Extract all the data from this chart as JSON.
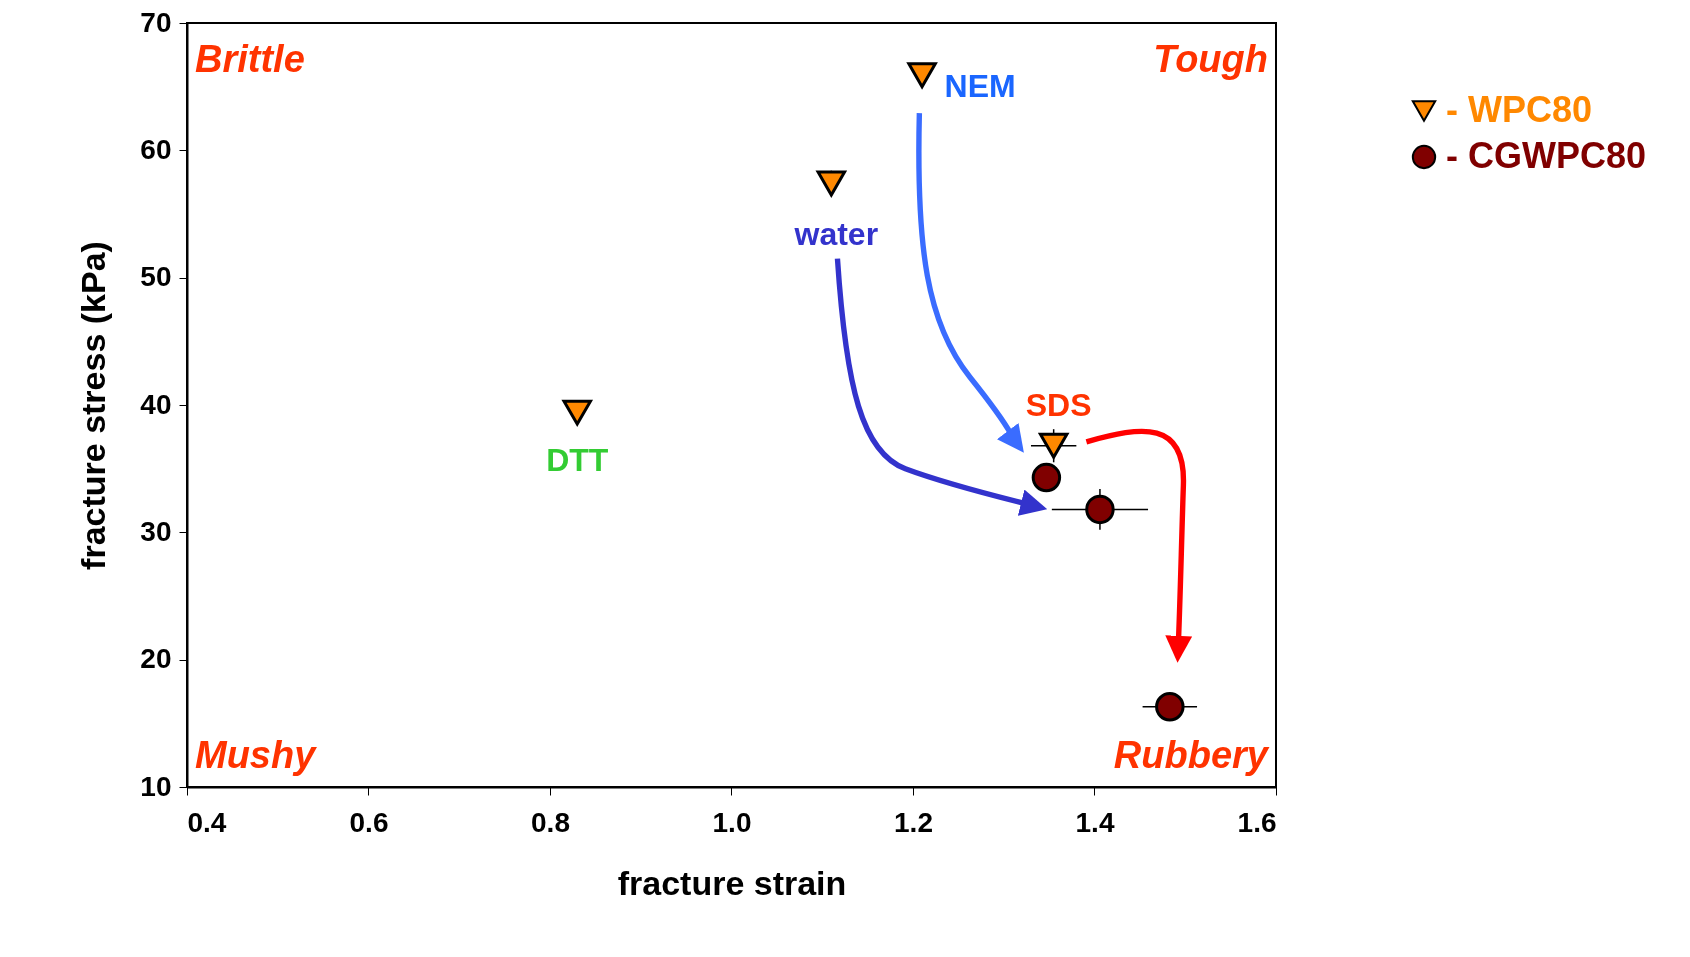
{
  "chart_data": {
    "type": "scatter",
    "xlabel": "fracture strain",
    "ylabel": "fracture stress (kPa)",
    "xlim": [
      0.4,
      1.6
    ],
    "xticks": [
      {
        "value": 0.4,
        "label": "0.4"
      },
      {
        "value": 0.6,
        "label": "0.6"
      },
      {
        "value": 0.8,
        "label": "0.8"
      },
      {
        "value": 1.0,
        "label": "1.0"
      },
      {
        "value": 1.2,
        "label": "1.2"
      },
      {
        "value": 1.4,
        "label": "1.4"
      },
      {
        "value": 1.6,
        "label": "1.6"
      }
    ],
    "ylim": [
      10,
      70
    ],
    "yticks": [
      10,
      20,
      30,
      40,
      50,
      60,
      70
    ],
    "grid": false,
    "legend": "top right",
    "series": [
      {
        "name": "- WPC80",
        "color": "#ff8800",
        "marker": "triangle",
        "x": [
          0.83,
          1.11,
          1.21,
          1.355
        ],
        "values": [
          39.4,
          57.4,
          65.9,
          36.8
        ],
        "errors": [
          null,
          1,
          null,
          1.3
        ],
        "xerrors": [
          null,
          null,
          null,
          0.025
        ]
      },
      {
        "name": "- CGWPC80",
        "color": "#800000",
        "marker": "circle",
        "x": [
          1.347,
          1.406,
          1.483
        ],
        "values": [
          34.3,
          31.8,
          16.3
        ],
        "errors": [
          null,
          1.6,
          null
        ],
        "xerrors": [
          null,
          0.053,
          0.03
        ]
      }
    ],
    "annotations": [
      "Brittle",
      "Tough",
      "Mushy",
      "Rubbery",
      {
        "text": "DTT",
        "x": 0.83,
        "y": 39.4
      },
      {
        "text": "water",
        "x": 1.11,
        "y": 57.4
      },
      {
        "text": "NEM",
        "x": 1.21,
        "y": 65.9
      },
      {
        "text": "SDS",
        "x": 1.355,
        "y": 36.8
      }
    ]
  }
}
